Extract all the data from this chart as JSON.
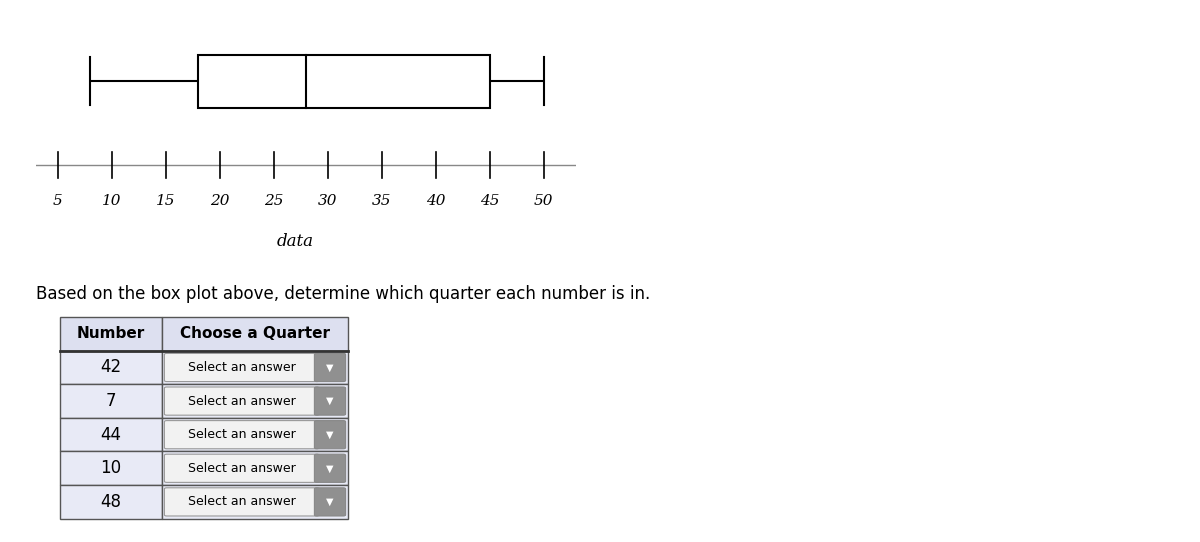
{
  "boxplot": {
    "min": 8,
    "q1": 18,
    "median": 28,
    "q3": 45,
    "max": 50
  },
  "axis_min": 5,
  "axis_max": 52,
  "tick_positions": [
    5,
    10,
    15,
    20,
    25,
    30,
    35,
    40,
    45,
    50
  ],
  "xlabel": "data",
  "background_color": "#ffffff",
  "instruction_text": "Based on the box plot above, determine which quarter each number is in.",
  "table_numbers": [
    42,
    7,
    44,
    10,
    48
  ],
  "table_col1_header": "Number",
  "table_col2_header": "Choose a Quarter",
  "table_cell_text": "Select an answer",
  "table_bg_color": "#e8eaf6",
  "table_header_bg": "#dde0f0",
  "table_border_color": "#555555",
  "boxplot_xlim": [
    3,
    53
  ]
}
